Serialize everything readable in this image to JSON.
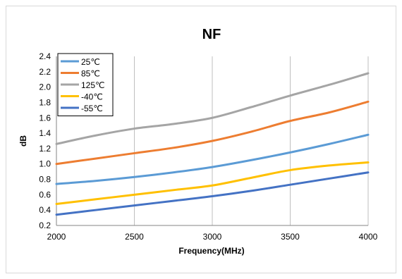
{
  "chart_data": {
    "type": "line",
    "title": "NF",
    "xlabel": "Frequency(MHz)",
    "ylabel": "dB",
    "xlim": [
      2000,
      4000
    ],
    "ylim": [
      0.2,
      2.4
    ],
    "x_ticks": [
      2000,
      2500,
      3000,
      3500,
      4000
    ],
    "y_ticks": [
      "0.2",
      "0.4",
      "0.6",
      "0.8",
      "1.0",
      "1.2",
      "1.4",
      "1.6",
      "1.8",
      "2.0",
      "2.2",
      "2.4"
    ],
    "grid": "vertical",
    "legend_position": "top-left",
    "x": [
      2000,
      2250,
      2500,
      2750,
      3000,
      3250,
      3500,
      3750,
      4000
    ],
    "series": [
      {
        "name": "25℃",
        "color": "#5b9bd5",
        "values": [
          0.74,
          0.78,
          0.83,
          0.89,
          0.96,
          1.05,
          1.15,
          1.26,
          1.38
        ]
      },
      {
        "name": "85℃",
        "color": "#ed7d31",
        "values": [
          1.0,
          1.07,
          1.14,
          1.21,
          1.3,
          1.42,
          1.56,
          1.67,
          1.81
        ]
      },
      {
        "name": "125℃",
        "color": "#a5a5a5",
        "values": [
          1.26,
          1.37,
          1.46,
          1.52,
          1.6,
          1.74,
          1.89,
          2.03,
          2.18
        ]
      },
      {
        "name": "-40℃",
        "color": "#ffc000",
        "values": [
          0.48,
          0.54,
          0.6,
          0.66,
          0.72,
          0.82,
          0.92,
          0.98,
          1.02
        ]
      },
      {
        "name": "-55℃",
        "color": "#4472c4",
        "values": [
          0.34,
          0.4,
          0.46,
          0.52,
          0.58,
          0.65,
          0.73,
          0.81,
          0.89
        ]
      }
    ]
  }
}
